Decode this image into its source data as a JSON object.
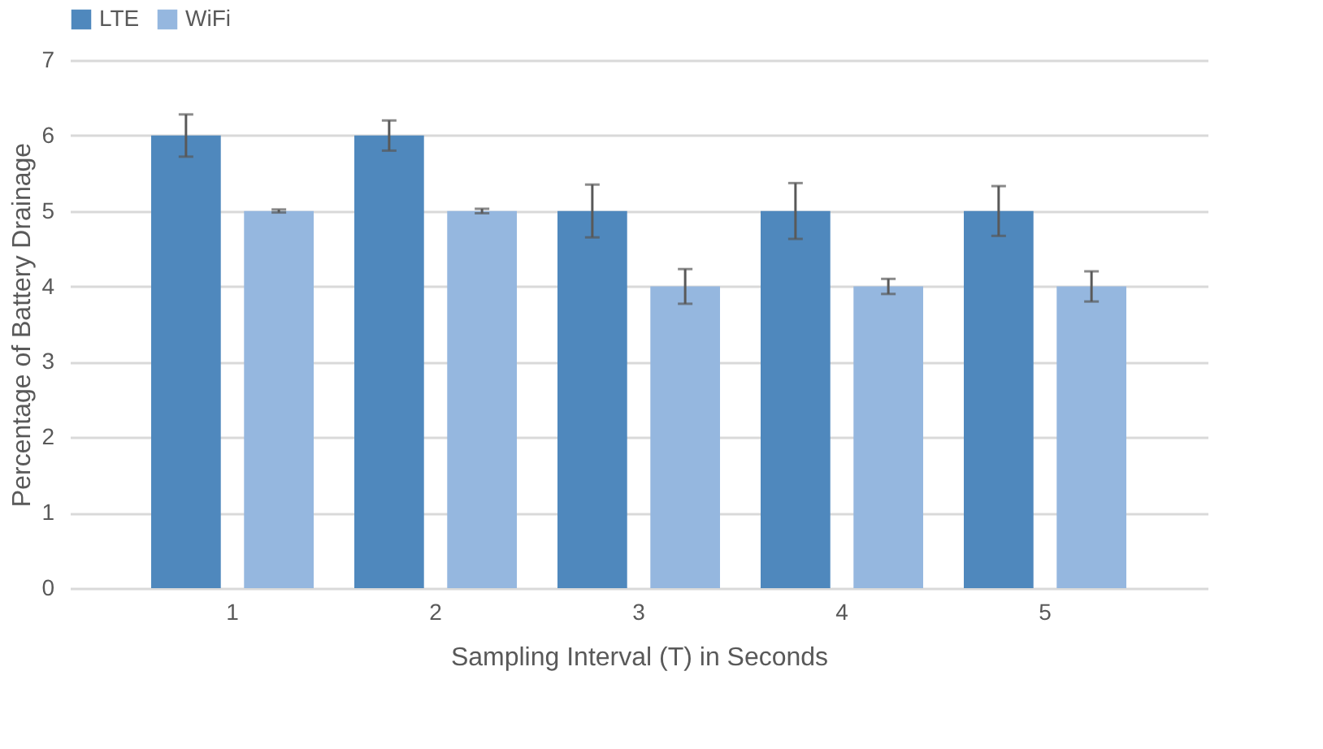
{
  "chart_data": {
    "type": "bar",
    "xlabel": "Sampling Interval (T) in Seconds",
    "ylabel": "Percentage of Battery Drainage",
    "categories": [
      "1",
      "2",
      "3",
      "4",
      "5"
    ],
    "series": [
      {
        "name": "LTE",
        "color": "#4f88bd",
        "values": [
          6,
          6,
          5,
          5,
          5
        ],
        "errors": [
          0.28,
          0.2,
          0.35,
          0.37,
          0.33
        ]
      },
      {
        "name": "WiFi",
        "color": "#95b7df",
        "values": [
          5,
          5,
          4,
          4,
          4
        ],
        "errors": [
          0.02,
          0.03,
          0.23,
          0.1,
          0.2
        ]
      }
    ],
    "ylim": [
      0,
      7
    ],
    "yticks": [
      0,
      1,
      2,
      3,
      4,
      5,
      6,
      7
    ],
    "grid": "y",
    "legend": "top"
  }
}
